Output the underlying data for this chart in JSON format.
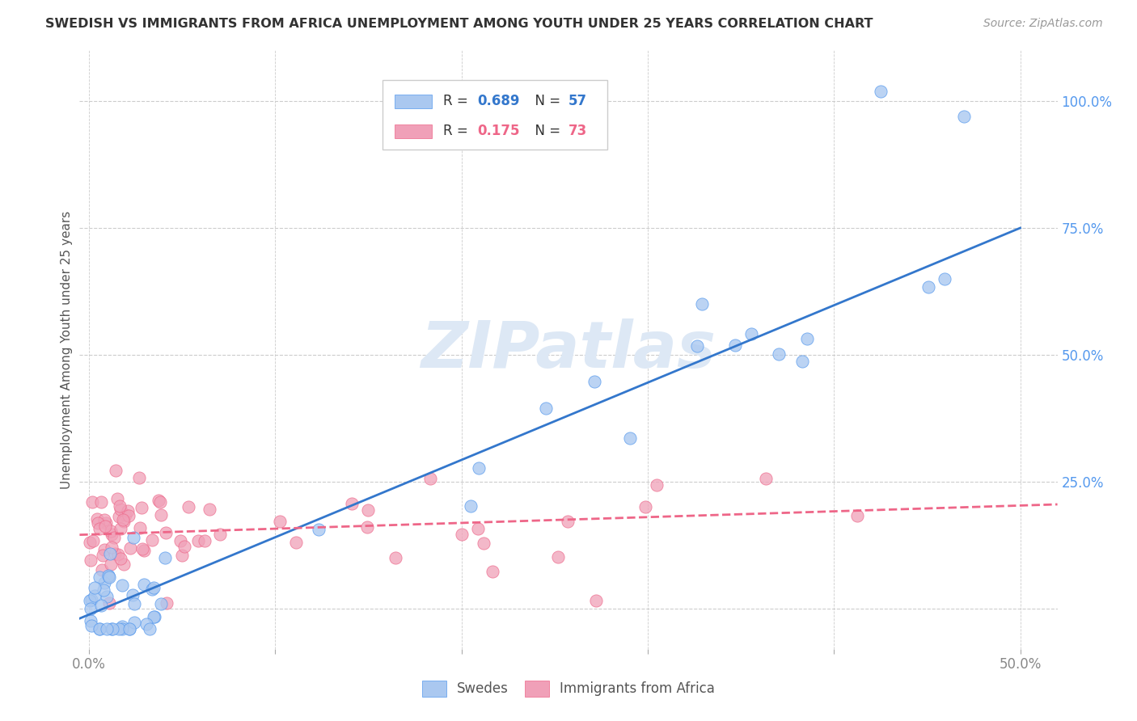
{
  "title": "SWEDISH VS IMMIGRANTS FROM AFRICA UNEMPLOYMENT AMONG YOUTH UNDER 25 YEARS CORRELATION CHART",
  "source": "Source: ZipAtlas.com",
  "ylabel": "Unemployment Among Youth under 25 years",
  "swedes_color": "#aac8f0",
  "africa_color": "#f0a0b8",
  "swedes_edge_color": "#5599ee",
  "africa_edge_color": "#ee6688",
  "swedes_line_color": "#3377cc",
  "africa_line_color": "#ee6688",
  "background_color": "#ffffff",
  "grid_color": "#cccccc",
  "ytick_color": "#5599ee",
  "xtick_color": "#888888",
  "title_color": "#333333",
  "source_color": "#999999",
  "ylabel_color": "#555555",
  "watermark_color": "#dde8f5",
  "sw_line_x": [
    -0.005,
    0.5
  ],
  "sw_line_y": [
    -0.02,
    0.75
  ],
  "af_line_x": [
    -0.005,
    0.52
  ],
  "af_line_y": [
    0.145,
    0.205
  ],
  "xlim": [
    -0.005,
    0.52
  ],
  "ylim": [
    -0.08,
    1.1
  ],
  "xtick_vals": [
    0.0,
    0.1,
    0.2,
    0.3,
    0.4,
    0.5
  ],
  "xtick_labels": [
    "0.0%",
    "",
    "",
    "",
    "",
    "50.0%"
  ],
  "ytick_vals": [
    0.0,
    0.25,
    0.5,
    0.75,
    1.0
  ],
  "ytick_labels": [
    "",
    "25.0%",
    "50.0%",
    "75.0%",
    "100.0%"
  ]
}
